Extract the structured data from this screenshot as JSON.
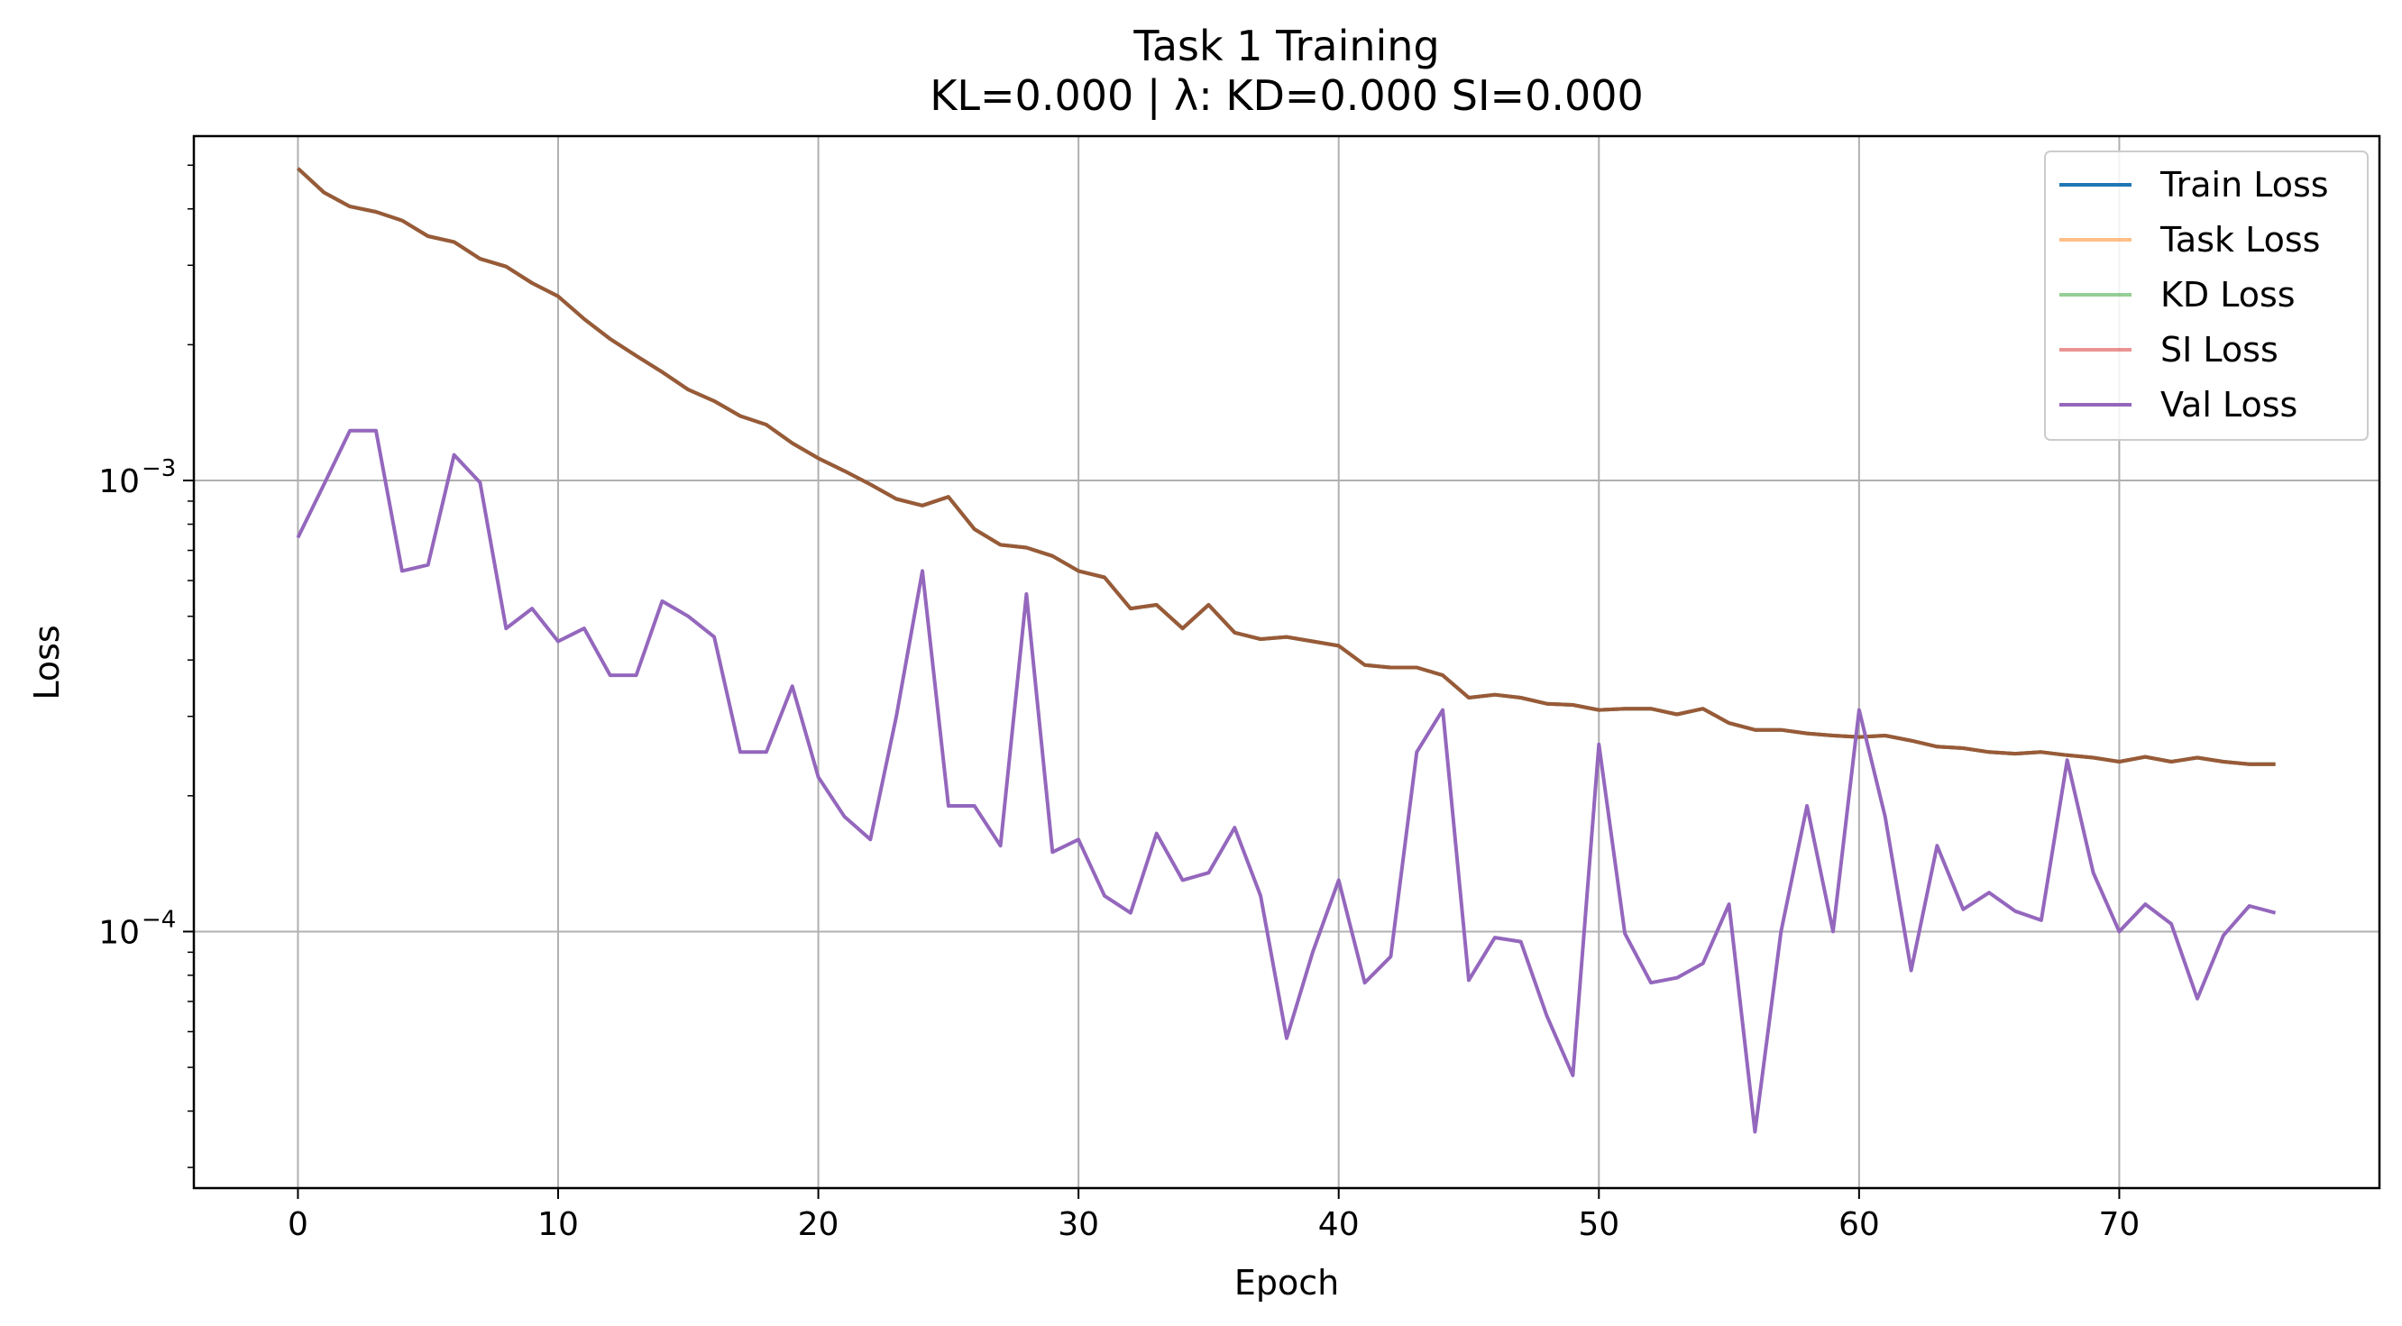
{
  "chart_data": {
    "type": "line",
    "title": "Task 1 Training",
    "subtitle": "KL=0.000 | λ: KD=0.000 SI=0.000",
    "xlabel": "Epoch",
    "ylabel": "Loss",
    "yscale": "log",
    "grid": true,
    "legend_position": "top-right",
    "xlim": [
      -4,
      80
    ],
    "ylim": [
      2.7e-05,
      0.0058
    ],
    "x_ticks": [
      0,
      10,
      20,
      30,
      40,
      50,
      60,
      70
    ],
    "x_tick_labels": [
      "0",
      "10",
      "20",
      "30",
      "40",
      "50",
      "60",
      "70"
    ],
    "y_ticks": [
      0.0001,
      0.001
    ],
    "y_tick_labels": [
      {
        "base": "10",
        "exp": "−4"
      },
      {
        "base": "10",
        "exp": "−3"
      }
    ],
    "x": [
      0,
      1,
      2,
      3,
      4,
      5,
      6,
      7,
      8,
      9,
      10,
      11,
      12,
      13,
      14,
      15,
      16,
      17,
      18,
      19,
      20,
      21,
      22,
      23,
      24,
      25,
      26,
      27,
      28,
      29,
      30,
      31,
      32,
      33,
      34,
      35,
      36,
      37,
      38,
      39,
      40,
      41,
      42,
      43,
      44,
      45,
      46,
      47,
      48,
      49,
      50,
      51,
      52,
      53,
      54,
      55,
      56,
      57,
      58,
      59,
      60,
      61,
      62,
      63,
      64,
      65,
      66,
      67,
      68,
      69,
      70,
      71,
      72,
      73,
      74,
      75,
      76
    ],
    "series": [
      {
        "name": "Train Loss",
        "color": "#1f77b4",
        "alpha": 1.0,
        "values": [
          0.00492,
          0.00435,
          0.00405,
          0.00394,
          0.00377,
          0.00348,
          0.00338,
          0.0031,
          0.00298,
          0.00274,
          0.00256,
          0.00228,
          0.00206,
          0.00189,
          0.00174,
          0.00159,
          0.0015,
          0.00139,
          0.00133,
          0.00121,
          0.00112,
          0.00105,
          0.00098,
          0.00091,
          0.00088,
          0.00092,
          0.00078,
          0.00072,
          0.00071,
          0.00068,
          0.00063,
          0.00061,
          0.00052,
          0.00053,
          0.00047,
          0.00053,
          0.00046,
          0.000445,
          0.00045,
          0.00044,
          0.00043,
          0.00039,
          0.000385,
          0.000385,
          0.00037,
          0.00033,
          0.000335,
          0.00033,
          0.00032,
          0.000318,
          0.00031,
          0.000312,
          0.000312,
          0.000303,
          0.000312,
          0.00029,
          0.00028,
          0.00028,
          0.000275,
          0.000272,
          0.00027,
          0.000272,
          0.000265,
          0.000257,
          0.000255,
          0.00025,
          0.000248,
          0.00025,
          0.000246,
          0.000243,
          0.000238,
          0.000244,
          0.000238,
          0.000243,
          0.000238,
          0.000235,
          0.000235
        ]
      },
      {
        "name": "Task Loss",
        "color": "#ff7f0e",
        "alpha": 0.5,
        "values": [
          0.00492,
          0.00435,
          0.00405,
          0.00394,
          0.00377,
          0.00348,
          0.00338,
          0.0031,
          0.00298,
          0.00274,
          0.00256,
          0.00228,
          0.00206,
          0.00189,
          0.00174,
          0.00159,
          0.0015,
          0.00139,
          0.00133,
          0.00121,
          0.00112,
          0.00105,
          0.00098,
          0.00091,
          0.00088,
          0.00092,
          0.00078,
          0.00072,
          0.00071,
          0.00068,
          0.00063,
          0.00061,
          0.00052,
          0.00053,
          0.00047,
          0.00053,
          0.00046,
          0.000445,
          0.00045,
          0.00044,
          0.00043,
          0.00039,
          0.000385,
          0.000385,
          0.00037,
          0.00033,
          0.000335,
          0.00033,
          0.00032,
          0.000318,
          0.00031,
          0.000312,
          0.000312,
          0.000303,
          0.000312,
          0.00029,
          0.00028,
          0.00028,
          0.000275,
          0.000272,
          0.00027,
          0.000272,
          0.000265,
          0.000257,
          0.000255,
          0.00025,
          0.000248,
          0.00025,
          0.000246,
          0.000243,
          0.000238,
          0.000244,
          0.000238,
          0.000243,
          0.000238,
          0.000235,
          0.000235
        ]
      },
      {
        "name": "KD Loss",
        "color": "#2ca02c",
        "alpha": 0.5,
        "values": [
          0.00492,
          0.00435,
          0.00405,
          0.00394,
          0.00377,
          0.00348,
          0.00338,
          0.0031,
          0.00298,
          0.00274,
          0.00256,
          0.00228,
          0.00206,
          0.00189,
          0.00174,
          0.00159,
          0.0015,
          0.00139,
          0.00133,
          0.00121,
          0.00112,
          0.00105,
          0.00098,
          0.00091,
          0.00088,
          0.00092,
          0.00078,
          0.00072,
          0.00071,
          0.00068,
          0.00063,
          0.00061,
          0.00052,
          0.00053,
          0.00047,
          0.00053,
          0.00046,
          0.000445,
          0.00045,
          0.00044,
          0.00043,
          0.00039,
          0.000385,
          0.000385,
          0.00037,
          0.00033,
          0.000335,
          0.00033,
          0.00032,
          0.000318,
          0.00031,
          0.000312,
          0.000312,
          0.000303,
          0.000312,
          0.00029,
          0.00028,
          0.00028,
          0.000275,
          0.000272,
          0.00027,
          0.000272,
          0.000265,
          0.000257,
          0.000255,
          0.00025,
          0.000248,
          0.00025,
          0.000246,
          0.000243,
          0.000238,
          0.000244,
          0.000238,
          0.000243,
          0.000238,
          0.000235,
          0.000235
        ]
      },
      {
        "name": "SI Loss",
        "color": "#d62728",
        "alpha": 0.5,
        "values": [
          0.00492,
          0.00435,
          0.00405,
          0.00394,
          0.00377,
          0.00348,
          0.00338,
          0.0031,
          0.00298,
          0.00274,
          0.00256,
          0.00228,
          0.00206,
          0.00189,
          0.00174,
          0.00159,
          0.0015,
          0.00139,
          0.00133,
          0.00121,
          0.00112,
          0.00105,
          0.00098,
          0.00091,
          0.00088,
          0.00092,
          0.00078,
          0.00072,
          0.00071,
          0.00068,
          0.00063,
          0.00061,
          0.00052,
          0.00053,
          0.00047,
          0.00053,
          0.00046,
          0.000445,
          0.00045,
          0.00044,
          0.00043,
          0.00039,
          0.000385,
          0.000385,
          0.00037,
          0.00033,
          0.000335,
          0.00033,
          0.00032,
          0.000318,
          0.00031,
          0.000312,
          0.000312,
          0.000303,
          0.000312,
          0.00029,
          0.00028,
          0.00028,
          0.000275,
          0.000272,
          0.00027,
          0.000272,
          0.000265,
          0.000257,
          0.000255,
          0.00025,
          0.000248,
          0.00025,
          0.000246,
          0.000243,
          0.000238,
          0.000244,
          0.000238,
          0.000243,
          0.000238,
          0.000235,
          0.000235
        ]
      },
      {
        "name": "Val Loss",
        "color": "#9467bd",
        "alpha": 1.0,
        "values": [
          0.000747,
          0.00098,
          0.00129,
          0.00129,
          0.00063,
          0.00065,
          0.00114,
          0.00099,
          0.00047,
          0.00052,
          0.00044,
          0.00047,
          0.00037,
          0.00037,
          0.00054,
          0.0005,
          0.00045,
          0.00025,
          0.00025,
          0.00035,
          0.00022,
          0.00018,
          0.00016,
          0.0003,
          0.00063,
          0.00019,
          0.00019,
          0.000155,
          0.00056,
          0.00015,
          0.00016,
          0.00012,
          0.00011,
          0.000165,
          0.00013,
          0.000135,
          0.00017,
          0.00012,
          5.8e-05,
          9e-05,
          0.00013,
          7.7e-05,
          8.8e-05,
          0.00025,
          0.00031,
          7.8e-05,
          9.7e-05,
          9.5e-05,
          6.5e-05,
          4.8e-05,
          0.00026,
          9.9e-05,
          7.7e-05,
          7.9e-05,
          8.5e-05,
          0.000115,
          3.6e-05,
          0.0001,
          0.00019,
          0.0001,
          0.00031,
          0.00018,
          8.2e-05,
          0.000155,
          0.000112,
          0.000122,
          0.000111,
          0.000106,
          0.00024,
          0.000135,
          0.0001,
          0.000115,
          0.000104,
          7.1e-05,
          9.8e-05,
          0.000114,
          0.00011
        ]
      }
    ]
  }
}
